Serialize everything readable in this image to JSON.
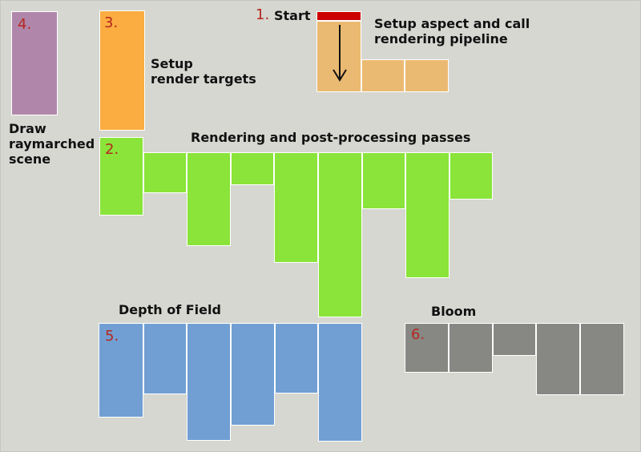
{
  "colors": {
    "background": "#d5d7d0",
    "start_marker": "#cc0000",
    "stage_1": "#ebba72",
    "stage_2": "#8ae43a",
    "stage_3": "#fbad41",
    "stage_4": "#b087aa",
    "stage_5": "#719fd3",
    "stage_6": "#878884",
    "number_text": "#b5271f"
  },
  "stages": [
    {
      "number": "1.",
      "title": "Start",
      "description": "Setup aspect and call\nrendering pipeline"
    },
    {
      "number": "2.",
      "title": "Rendering and post-processing passes"
    },
    {
      "number": "3.",
      "title": "Setup\nrender targets"
    },
    {
      "number": "4.",
      "title": "Draw\nraymarched\nscene"
    },
    {
      "number": "5.",
      "title": "Depth of Field"
    },
    {
      "number": "6.",
      "title": "Bloom"
    }
  ],
  "icons": {
    "flow": "arrow-down-icon"
  }
}
